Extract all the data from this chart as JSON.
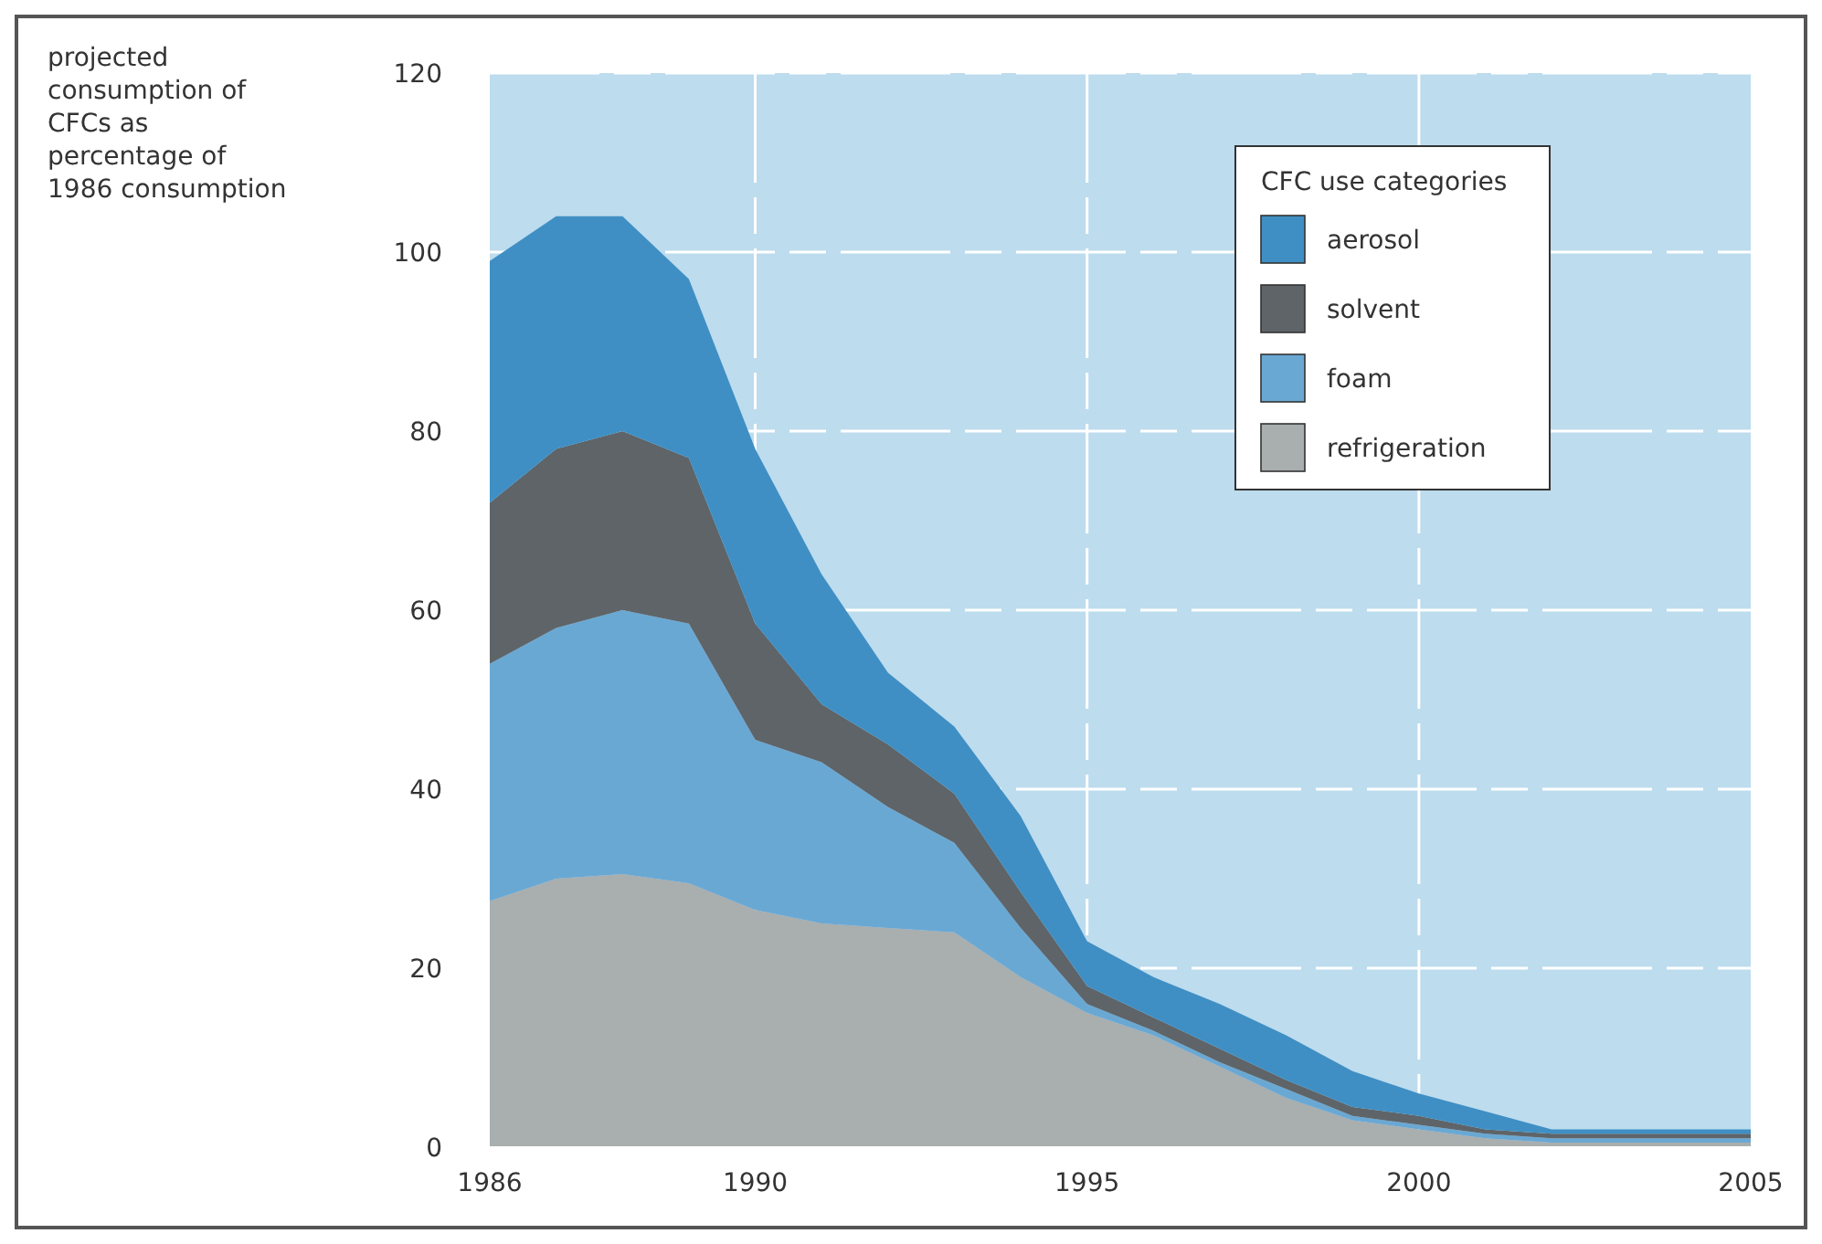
{
  "chart_data": {
    "type": "area",
    "stacked": true,
    "ylabel": "projected consumption of CFCs as percentage of 1986 consumption",
    "legend_title": "CFC use categories",
    "legend": "top right",
    "grid": true,
    "x": [
      1986,
      1987,
      1988,
      1989,
      1990,
      1991,
      1992,
      1993,
      1994,
      1995,
      1996,
      1997,
      1998,
      1999,
      2000,
      2001,
      2002,
      2003,
      2004,
      2005
    ],
    "xlim": [
      1986,
      2005
    ],
    "xticks": [
      1986,
      1990,
      1995,
      2000,
      2005
    ],
    "ylim": [
      0,
      120
    ],
    "yticks": [
      0,
      20,
      40,
      60,
      80,
      100,
      120
    ],
    "series": [
      {
        "name": "refrigeration",
        "color": "#a9aeae",
        "values": [
          27.5,
          30,
          30.5,
          29.5,
          26.5,
          25,
          24.5,
          24,
          19,
          15,
          12.5,
          9,
          5.5,
          3,
          2,
          1,
          0.5,
          0.5,
          0.5,
          0.5
        ]
      },
      {
        "name": "foam",
        "color": "#6aa8d4",
        "values": [
          26.5,
          28,
          29.5,
          29,
          19,
          18,
          13.5,
          10,
          5.5,
          1,
          0.5,
          0.5,
          1,
          0.5,
          0.5,
          0.5,
          0.5,
          0.5,
          0.5,
          0.5
        ]
      },
      {
        "name": "solvent",
        "color": "#5e6468",
        "values": [
          18,
          20,
          20,
          18.5,
          13,
          6.5,
          7,
          5.5,
          4,
          2,
          1.5,
          1.5,
          1,
          1,
          1,
          0.5,
          0.5,
          0.5,
          0.5,
          0.5
        ]
      },
      {
        "name": "aerosol",
        "color": "#3f8fc4",
        "values": [
          27,
          26,
          24,
          20,
          19.5,
          14.5,
          8,
          7.5,
          8.5,
          5,
          4.5,
          5,
          5,
          4,
          2.5,
          2,
          0.5,
          0.5,
          0.5,
          0.5
        ]
      }
    ]
  }
}
